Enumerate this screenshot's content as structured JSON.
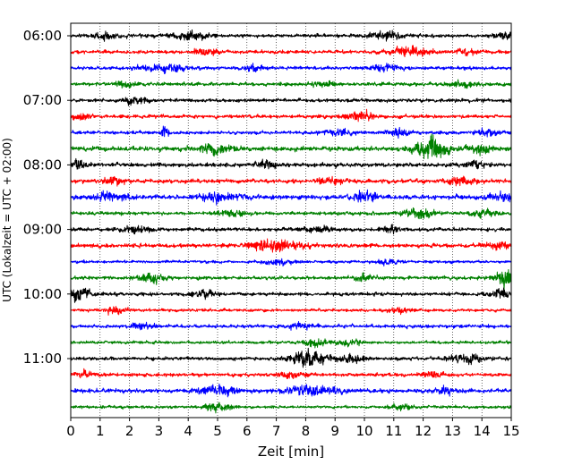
{
  "chart_data": {
    "type": "line",
    "title": "",
    "xlabel": "Zeit  [min]",
    "ylabel": "UTC (Lokalzeit = UTC + 02:00)",
    "xlim": [
      0,
      15
    ],
    "x_ticks": [
      0,
      1,
      2,
      3,
      4,
      5,
      6,
      7,
      8,
      9,
      10,
      11,
      12,
      13,
      14,
      15
    ],
    "y_tick_labels": [
      "06:00",
      "07:00",
      "08:00",
      "09:00",
      "10:00",
      "11:00"
    ],
    "grid": "vertical dotted",
    "color_cycle": [
      "#000000",
      "#ff0000",
      "#0000ff",
      "#008000"
    ],
    "series": [
      {
        "start": "06:00",
        "color": "#000000",
        "amp": 3,
        "events": [
          [
            1.2,
            1.3,
            4
          ],
          [
            4.1,
            1.6,
            6
          ],
          [
            10.7,
            1.8,
            5
          ],
          [
            14.8,
            1.2,
            4
          ]
        ]
      },
      {
        "start": "06:15",
        "color": "#ff0000",
        "amp": 3,
        "events": [
          [
            4.6,
            1.2,
            4
          ],
          [
            11.6,
            2,
            6
          ],
          [
            13.5,
            1.1,
            4
          ]
        ]
      },
      {
        "start": "06:30",
        "color": "#0000ff",
        "amp": 3,
        "events": [
          [
            3.2,
            2.5,
            5
          ],
          [
            6.2,
            1.1,
            4
          ],
          [
            10.7,
            1.2,
            6
          ]
        ]
      },
      {
        "start": "06:45",
        "color": "#008000",
        "amp": 3,
        "events": [
          [
            1.8,
            1.2,
            4
          ],
          [
            8.6,
            1.1,
            4
          ],
          [
            13.4,
            1.2,
            4
          ]
        ]
      },
      {
        "start": "07:00",
        "color": "#000000",
        "amp": 3,
        "events": [
          [
            2.2,
            1.1,
            6
          ]
        ]
      },
      {
        "start": "07:15",
        "color": "#ff0000",
        "amp": 3,
        "events": [
          [
            0.4,
            1,
            4
          ],
          [
            9.7,
            1.2,
            4
          ],
          [
            10,
            1,
            4
          ]
        ]
      },
      {
        "start": "07:30",
        "color": "#0000ff",
        "amp": 3,
        "events": [
          [
            3.2,
            0.3,
            12
          ],
          [
            9.2,
            1.5,
            4
          ],
          [
            11.1,
            1.1,
            5
          ],
          [
            14.2,
            1.3,
            4
          ]
        ]
      },
      {
        "start": "07:45",
        "color": "#008000",
        "amp": 4,
        "events": [
          [
            4.9,
            1.8,
            6
          ],
          [
            12.3,
            1.6,
            14
          ],
          [
            14,
            1.2,
            5
          ]
        ]
      },
      {
        "start": "08:00",
        "color": "#000000",
        "amp": 3.5,
        "events": [
          [
            0.3,
            1,
            5
          ],
          [
            6.6,
            1,
            5
          ],
          [
            13.8,
            1.3,
            4
          ]
        ]
      },
      {
        "start": "08:15",
        "color": "#ff0000",
        "amp": 3.5,
        "events": [
          [
            1.5,
            1,
            4
          ],
          [
            8.8,
            1.2,
            5
          ],
          [
            13.3,
            1.5,
            5
          ]
        ]
      },
      {
        "start": "08:30",
        "color": "#0000ff",
        "amp": 4,
        "events": [
          [
            1.4,
            1.6,
            5
          ],
          [
            5.2,
            2,
            6
          ],
          [
            10,
            1.2,
            6
          ],
          [
            14.7,
            1.2,
            6
          ]
        ]
      },
      {
        "start": "08:45",
        "color": "#008000",
        "amp": 3,
        "events": [
          [
            5.5,
            1.5,
            4
          ],
          [
            11.8,
            1.5,
            6
          ],
          [
            14.1,
            1.3,
            4
          ]
        ]
      },
      {
        "start": "09:00",
        "color": "#000000",
        "amp": 3,
        "events": [
          [
            2.3,
            1.6,
            4
          ],
          [
            8.4,
            1.3,
            4
          ],
          [
            10.9,
            1.1,
            4
          ]
        ]
      },
      {
        "start": "09:15",
        "color": "#ff0000",
        "amp": 3.5,
        "events": [
          [
            7,
            2.5,
            8
          ],
          [
            14.5,
            1.2,
            5
          ]
        ]
      },
      {
        "start": "09:30",
        "color": "#0000ff",
        "amp": 2.5,
        "events": [
          [
            7.1,
            1.4,
            4
          ],
          [
            10.8,
            1.2,
            3
          ]
        ]
      },
      {
        "start": "09:45",
        "color": "#008000",
        "amp": 3,
        "events": [
          [
            2.8,
            1.2,
            7
          ],
          [
            14.8,
            0.9,
            15
          ],
          [
            10,
            1.1,
            4
          ]
        ]
      },
      {
        "start": "10:00",
        "color": "#000000",
        "amp": 3,
        "events": [
          [
            0.2,
            1.2,
            10
          ],
          [
            4.5,
            1.3,
            4
          ],
          [
            14.6,
            1,
            6
          ]
        ]
      },
      {
        "start": "10:15",
        "color": "#ff0000",
        "amp": 2.5,
        "events": [
          [
            1.5,
            1.2,
            5
          ],
          [
            11.2,
            1.1,
            4
          ]
        ]
      },
      {
        "start": "10:30",
        "color": "#0000ff",
        "amp": 3,
        "events": [
          [
            2.4,
            1.1,
            4
          ],
          [
            7.8,
            1.3,
            4
          ]
        ]
      },
      {
        "start": "10:45",
        "color": "#008000",
        "amp": 2.5,
        "events": [
          [
            8.3,
            1,
            6
          ],
          [
            9.5,
            1.3,
            4
          ]
        ]
      },
      {
        "start": "11:00",
        "color": "#000000",
        "amp": 3,
        "events": [
          [
            8.1,
            1.8,
            10
          ],
          [
            9.6,
            1.2,
            5
          ],
          [
            13.5,
            1.4,
            7
          ]
        ]
      },
      {
        "start": "11:15",
        "color": "#ff0000",
        "amp": 3,
        "events": [
          [
            0.5,
            1,
            4
          ],
          [
            7.6,
            1.5,
            4
          ],
          [
            12.3,
            1.1,
            4
          ]
        ]
      },
      {
        "start": "11:30",
        "color": "#0000ff",
        "amp": 3.5,
        "events": [
          [
            5,
            1.6,
            7
          ],
          [
            8.2,
            2.4,
            7
          ],
          [
            12.8,
            1.2,
            4
          ]
        ]
      },
      {
        "start": "11:45",
        "color": "#008000",
        "amp": 2.5,
        "events": [
          [
            5,
            1.3,
            5
          ],
          [
            11.2,
            1.2,
            4
          ]
        ]
      }
    ]
  }
}
